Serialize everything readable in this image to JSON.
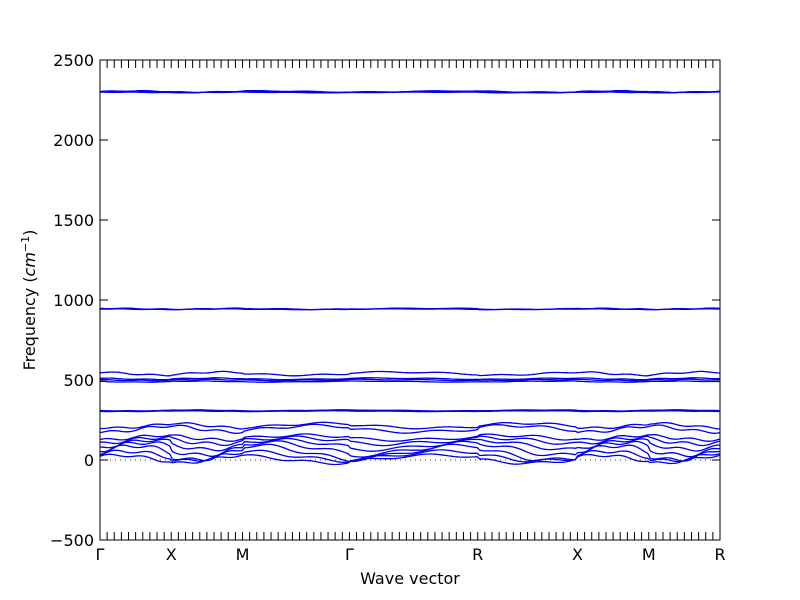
{
  "chart_data": {
    "type": "line",
    "title": "",
    "xlabel": "Wave vector",
    "ylabel": "Frequency ($cm^{-1}$)",
    "ylabel_parts": {
      "main": "Frequency (",
      "unit": "cm",
      "exp": "−1",
      "close": ")"
    },
    "ylim": [
      -500,
      2500
    ],
    "yticks": [
      -500,
      0,
      500,
      1000,
      1500,
      2000,
      2500
    ],
    "ytick_labels": [
      "−500",
      "0",
      "500",
      "1000",
      "1500",
      "2000",
      "2500"
    ],
    "x_path_labels": [
      "Γ",
      "X",
      "M",
      "Γ",
      "R",
      "X",
      "M",
      "R"
    ],
    "x_path_positions": [
      0,
      1,
      2,
      3.5,
      5.3,
      6.7,
      7.7,
      8.7
    ],
    "grid": false,
    "line_color": "#0000ee",
    "zero_line_style": "dotted",
    "bands": [
      {
        "base": 2303,
        "amp": 4,
        "wobble": 2
      },
      {
        "base": 2300,
        "amp": 3,
        "wobble": 2
      },
      {
        "base": 2297,
        "amp": 2,
        "wobble": 1
      },
      {
        "base": 945,
        "amp": 3,
        "wobble": 2
      },
      {
        "base": 942,
        "amp": 2,
        "wobble": 1
      },
      {
        "base": 540,
        "amp": 10,
        "wobble": 4
      },
      {
        "base": 508,
        "amp": 4,
        "wobble": 2
      },
      {
        "base": 500,
        "amp": 3,
        "wobble": 2
      },
      {
        "base": 490,
        "amp": 3,
        "wobble": 1
      },
      {
        "base": 310,
        "amp": 3,
        "wobble": 1
      },
      {
        "base": 305,
        "amp": 2,
        "wobble": 1
      },
      {
        "base": 215,
        "amp": 15,
        "wobble": 6
      },
      {
        "base": 195,
        "amp": 20,
        "wobble": 8
      },
      {
        "base": 140,
        "amp": 15,
        "wobble": 8
      },
      {
        "base": 120,
        "amp": 20,
        "wobble": 10
      },
      {
        "base": 95,
        "amp": 30,
        "wobble": 10
      },
      {
        "base": 70,
        "amp": 40,
        "wobble": 12
      },
      {
        "base": 45,
        "amp": 45,
        "wobble": 12
      },
      {
        "base": 25,
        "amp": 30,
        "wobble": 10
      },
      {
        "base": 5,
        "amp": 25,
        "wobble": 8
      }
    ]
  }
}
